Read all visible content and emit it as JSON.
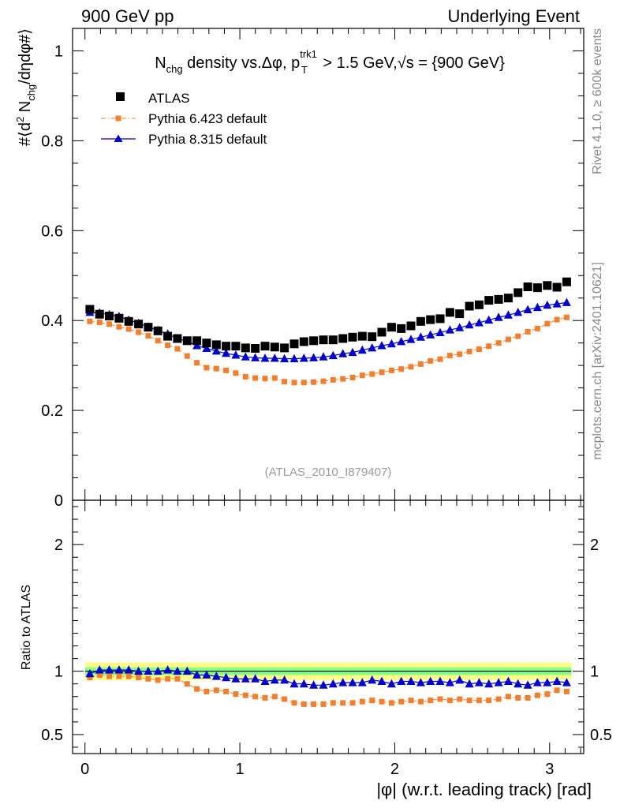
{
  "header": {
    "left": "900 GeV pp",
    "right": "Underlying Event"
  },
  "side_labels": {
    "rivet": "Rivet 4.1.0, ≥ 600k events",
    "mcplots": "mcplots.cern.ch [arXiv:2401.10621]"
  },
  "watermark": "(ATLAS_2010_I879407)",
  "title": {
    "prefix": "N",
    "sub1": "chg",
    "mid": " density vs.Δφ, p",
    "sup": "trk1",
    "sub2": "T",
    "suffix": " > 1.5 GeV,√s = {900 GeV}"
  },
  "ylabel_main": {
    "a": "#⟨d",
    "sup": "2",
    "b": " N",
    "sub": "chg",
    "c": "/dηdφ#⟩"
  },
  "ylabel_ratio": "Ratio to ATLAS",
  "xlabel": "|φ| (w.r.t. leading track) [rad]",
  "colors": {
    "data": "#000000",
    "pythia6": "#f08030",
    "pythia8": "#0000cc",
    "band_outer": "#ffff88",
    "band_inner": "#88ff88"
  },
  "chart_data": {
    "type": "scatter",
    "x": [
      0.0314,
      0.0942,
      0.157,
      0.2199,
      0.2827,
      0.3456,
      0.4084,
      0.4712,
      0.5341,
      0.5969,
      0.6597,
      0.7226,
      0.7854,
      0.8482,
      0.9111,
      0.9739,
      1.0367,
      1.0996,
      1.1624,
      1.2252,
      1.2881,
      1.3509,
      1.4137,
      1.4765,
      1.5394,
      1.6022,
      1.665,
      1.7279,
      1.7907,
      1.8535,
      1.9164,
      1.9792,
      2.042,
      2.1049,
      2.1677,
      2.2305,
      2.2934,
      2.3562,
      2.419,
      2.4819,
      2.5447,
      2.6075,
      2.6704,
      2.7332,
      2.796,
      2.8588,
      2.9217,
      2.9845,
      3.0473,
      3.1102
    ],
    "xlim": [
      -0.08,
      3.22
    ],
    "xticks": [
      0,
      1,
      2,
      3
    ],
    "xtick_labels": [
      "0",
      "1",
      "2",
      "3"
    ],
    "xlabel": "|φ| (w.r.t. leading track) [rad]",
    "main": {
      "ylim": [
        0,
        1.05
      ],
      "yticks": [
        0,
        0.2,
        0.4,
        0.6,
        0.8,
        1
      ],
      "ytick_labels": [
        "0",
        "0.2",
        "0.4",
        "0.6",
        "0.8",
        "1"
      ],
      "series": [
        {
          "name": "ATLAS",
          "marker": "square",
          "values": [
            0.425,
            0.414,
            0.41,
            0.405,
            0.398,
            0.392,
            0.385,
            0.377,
            0.365,
            0.36,
            0.355,
            0.355,
            0.35,
            0.346,
            0.343,
            0.343,
            0.339,
            0.338,
            0.343,
            0.341,
            0.339,
            0.348,
            0.353,
            0.355,
            0.357,
            0.357,
            0.36,
            0.363,
            0.365,
            0.364,
            0.374,
            0.385,
            0.382,
            0.388,
            0.398,
            0.402,
            0.404,
            0.418,
            0.415,
            0.432,
            0.435,
            0.445,
            0.447,
            0.45,
            0.462,
            0.475,
            0.473,
            0.478,
            0.474,
            0.486
          ]
        },
        {
          "name": "Pythia 6.423 default",
          "marker": "small-square",
          "line": "dash-dot",
          "values": [
            0.398,
            0.396,
            0.392,
            0.386,
            0.381,
            0.374,
            0.366,
            0.355,
            0.345,
            0.337,
            0.321,
            0.306,
            0.295,
            0.293,
            0.289,
            0.283,
            0.275,
            0.272,
            0.271,
            0.272,
            0.264,
            0.262,
            0.262,
            0.263,
            0.265,
            0.268,
            0.27,
            0.273,
            0.278,
            0.281,
            0.285,
            0.289,
            0.292,
            0.297,
            0.303,
            0.31,
            0.314,
            0.322,
            0.325,
            0.331,
            0.336,
            0.343,
            0.35,
            0.358,
            0.365,
            0.375,
            0.382,
            0.393,
            0.402,
            0.407
          ]
        },
        {
          "name": "Pythia 8.315 default",
          "marker": "triangle",
          "line": "solid",
          "values": [
            0.418,
            0.417,
            0.413,
            0.409,
            0.401,
            0.394,
            0.386,
            0.378,
            0.37,
            0.36,
            0.354,
            0.344,
            0.338,
            0.332,
            0.327,
            0.323,
            0.319,
            0.317,
            0.316,
            0.316,
            0.315,
            0.315,
            0.316,
            0.317,
            0.319,
            0.322,
            0.326,
            0.329,
            0.334,
            0.339,
            0.344,
            0.348,
            0.353,
            0.358,
            0.363,
            0.368,
            0.373,
            0.379,
            0.384,
            0.39,
            0.395,
            0.401,
            0.407,
            0.412,
            0.418,
            0.424,
            0.429,
            0.434,
            0.437,
            0.44
          ]
        }
      ]
    },
    "ratio": {
      "ylim": [
        0.35,
        2.35
      ],
      "reference": 1.0,
      "band_outer": [
        0.93,
        1.07
      ],
      "band_inner": [
        0.97,
        1.03
      ],
      "yticks": [
        0.5,
        1,
        2
      ],
      "ytick_labels": [
        "0.5",
        "1",
        "2"
      ],
      "series": [
        {
          "name": "Pythia 6.423 default",
          "values": [
            0.95,
            0.97,
            0.96,
            0.96,
            0.96,
            0.95,
            0.94,
            0.93,
            0.94,
            0.94,
            0.9,
            0.86,
            0.84,
            0.85,
            0.84,
            0.82,
            0.81,
            0.8,
            0.79,
            0.8,
            0.78,
            0.75,
            0.74,
            0.74,
            0.74,
            0.75,
            0.75,
            0.75,
            0.76,
            0.77,
            0.76,
            0.75,
            0.76,
            0.77,
            0.76,
            0.77,
            0.78,
            0.77,
            0.78,
            0.77,
            0.77,
            0.77,
            0.78,
            0.8,
            0.79,
            0.79,
            0.81,
            0.82,
            0.85,
            0.84
          ]
        },
        {
          "name": "Pythia 8.315 default",
          "values": [
            0.98,
            1.01,
            1.01,
            1.01,
            1.01,
            1.0,
            1.0,
            1.0,
            1.01,
            1.0,
            1.0,
            0.97,
            0.97,
            0.96,
            0.95,
            0.94,
            0.94,
            0.94,
            0.92,
            0.93,
            0.93,
            0.9,
            0.9,
            0.89,
            0.89,
            0.9,
            0.91,
            0.91,
            0.91,
            0.93,
            0.92,
            0.9,
            0.92,
            0.92,
            0.91,
            0.92,
            0.92,
            0.91,
            0.93,
            0.9,
            0.91,
            0.9,
            0.91,
            0.92,
            0.9,
            0.89,
            0.91,
            0.91,
            0.92,
            0.91
          ]
        }
      ]
    }
  }
}
